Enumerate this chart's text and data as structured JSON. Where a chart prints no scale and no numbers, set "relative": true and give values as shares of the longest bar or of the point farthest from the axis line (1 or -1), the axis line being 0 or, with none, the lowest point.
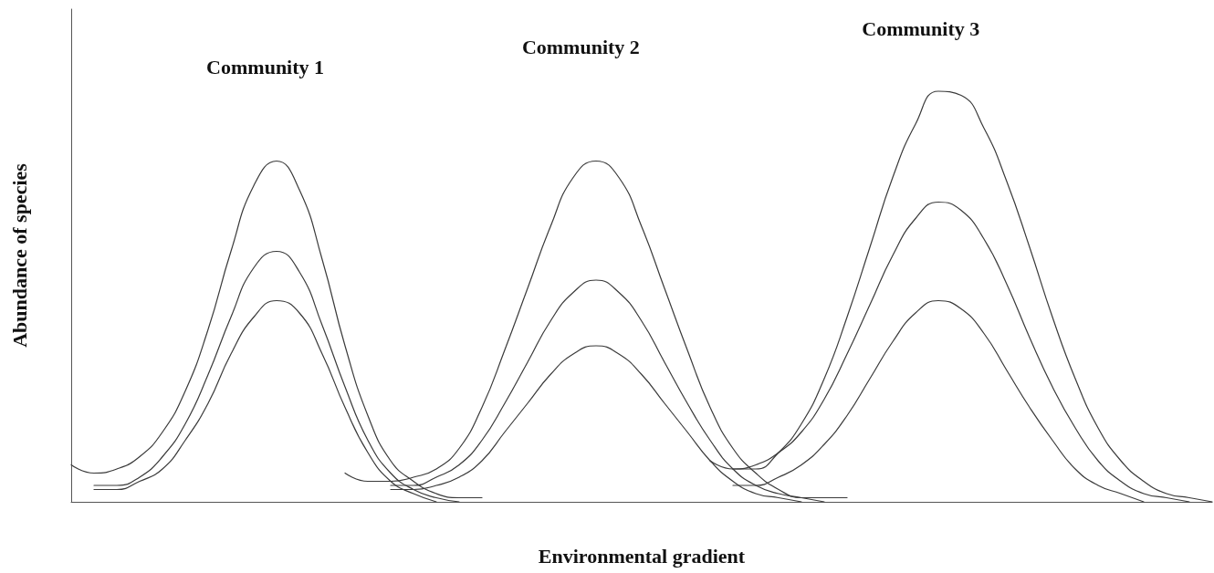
{
  "chart_data": {
    "type": "line",
    "relative": true,
    "xlabel": "Environmental gradient",
    "ylabel": "Abundance of species",
    "annotations": [
      "Community 1",
      "Community 2",
      "Community 3"
    ],
    "marker": "none",
    "line_style": "solid",
    "grid": false,
    "tick_labels": false,
    "categories": [
      null,
      null,
      null,
      null,
      null,
      null,
      null,
      null,
      null,
      null,
      null,
      null,
      null,
      null,
      null,
      null,
      null,
      null,
      null,
      null,
      null,
      null,
      null,
      null,
      null,
      null,
      null,
      null,
      null,
      null,
      null,
      null,
      null,
      null,
      null,
      null,
      null,
      null,
      null,
      null,
      null,
      null,
      null,
      null,
      null,
      null,
      null,
      null,
      null,
      null,
      null
    ],
    "series": [
      {
        "color": "#3a3a3a",
        "values": [
          0.09,
          0.07,
          0.08,
          0.11,
          0.17,
          0.27,
          0.42,
          0.61,
          0.77,
          0.83,
          0.76,
          0.59,
          0.38,
          0.21,
          0.1,
          0.05,
          0.02,
          0.01,
          0.01,
          null,
          null,
          null,
          null,
          null,
          null,
          null,
          null,
          null,
          null,
          null,
          null,
          null,
          null,
          null,
          null,
          null,
          null,
          null,
          null,
          null,
          null,
          null,
          null,
          null,
          null,
          null,
          null,
          null,
          null,
          null,
          null
        ]
      },
      {
        "color": "#3a3a3a",
        "values": [
          null,
          0.04,
          0.04,
          0.06,
          0.11,
          0.19,
          0.31,
          0.45,
          0.57,
          0.61,
          0.56,
          0.43,
          0.28,
          0.15,
          0.07,
          0.03,
          0.01,
          0.0,
          null,
          null,
          null,
          null,
          null,
          null,
          null,
          null,
          null,
          null,
          null,
          null,
          null,
          null,
          null,
          null,
          null,
          null,
          null,
          null,
          null,
          null,
          null,
          null,
          null,
          null,
          null,
          null,
          null,
          null,
          null,
          null,
          null
        ]
      },
      {
        "color": "#3a3a3a",
        "values": [
          null,
          0.03,
          0.03,
          0.05,
          0.08,
          0.15,
          0.24,
          0.36,
          0.45,
          0.49,
          0.46,
          0.36,
          0.23,
          0.12,
          0.05,
          0.02,
          0.0,
          null,
          null,
          null,
          null,
          null,
          null,
          null,
          null,
          null,
          null,
          null,
          null,
          null,
          null,
          null,
          null,
          null,
          null,
          null,
          null,
          null,
          null,
          null,
          null,
          null,
          null,
          null,
          null,
          null,
          null,
          null,
          null,
          null,
          null
        ]
      },
      {
        "color": "#3a3a3a",
        "values": [
          null,
          null,
          null,
          null,
          null,
          null,
          null,
          null,
          null,
          null,
          null,
          null,
          0.07,
          0.05,
          0.05,
          0.06,
          0.08,
          0.13,
          0.23,
          0.37,
          0.52,
          0.67,
          0.79,
          0.83,
          0.79,
          0.67,
          0.52,
          0.37,
          0.23,
          0.13,
          0.07,
          0.03,
          0.01,
          0.01,
          0.01,
          null,
          null,
          null,
          null,
          null,
          null,
          null,
          null,
          null,
          null,
          null,
          null,
          null,
          null,
          null,
          null
        ]
      },
      {
        "color": "#3a3a3a",
        "values": [
          null,
          null,
          null,
          null,
          null,
          null,
          null,
          null,
          null,
          null,
          null,
          null,
          null,
          null,
          0.04,
          0.04,
          0.06,
          0.09,
          0.15,
          0.24,
          0.34,
          0.44,
          0.51,
          0.54,
          0.51,
          0.44,
          0.34,
          0.24,
          0.15,
          0.08,
          0.04,
          0.02,
          0.01,
          0.0,
          null,
          null,
          null,
          null,
          null,
          null,
          null,
          null,
          null,
          null,
          null,
          null,
          null,
          null,
          null,
          null,
          null
        ]
      },
      {
        "color": "#3a3a3a",
        "values": [
          null,
          null,
          null,
          null,
          null,
          null,
          null,
          null,
          null,
          null,
          null,
          null,
          null,
          null,
          0.03,
          0.03,
          0.04,
          0.06,
          0.1,
          0.17,
          0.24,
          0.31,
          0.36,
          0.38,
          0.36,
          0.31,
          0.24,
          0.17,
          0.1,
          0.05,
          0.02,
          0.01,
          0.0,
          null,
          null,
          null,
          null,
          null,
          null,
          null,
          null,
          null,
          null,
          null,
          null,
          null,
          null,
          null,
          null,
          null,
          null
        ]
      },
      {
        "color": "#3a3a3a",
        "values": [
          null,
          null,
          null,
          null,
          null,
          null,
          null,
          null,
          null,
          null,
          null,
          null,
          null,
          null,
          null,
          null,
          null,
          null,
          null,
          null,
          null,
          null,
          null,
          null,
          null,
          null,
          null,
          null,
          null,
          0.08,
          0.08,
          0.12,
          0.19,
          0.3,
          0.45,
          0.62,
          0.79,
          0.92,
          1.0,
          0.99,
          0.91,
          0.78,
          0.62,
          0.45,
          0.3,
          0.18,
          0.1,
          0.05,
          0.02,
          0.01,
          0.0
        ]
      },
      {
        "color": "#3a3a3a",
        "values": [
          null,
          null,
          null,
          null,
          null,
          null,
          null,
          null,
          null,
          null,
          null,
          null,
          null,
          null,
          null,
          null,
          null,
          null,
          null,
          null,
          null,
          null,
          null,
          null,
          null,
          null,
          null,
          null,
          0.1,
          0.08,
          0.09,
          0.12,
          0.17,
          0.25,
          0.36,
          0.48,
          0.6,
          0.69,
          0.73,
          0.71,
          0.64,
          0.53,
          0.4,
          0.28,
          0.18,
          0.1,
          0.05,
          0.02,
          0.01,
          0.0,
          null
        ]
      },
      {
        "color": "#3a3a3a",
        "values": [
          null,
          null,
          null,
          null,
          null,
          null,
          null,
          null,
          null,
          null,
          null,
          null,
          null,
          null,
          null,
          null,
          null,
          null,
          null,
          null,
          null,
          null,
          null,
          null,
          null,
          null,
          null,
          null,
          null,
          0.04,
          0.04,
          0.06,
          0.09,
          0.14,
          0.21,
          0.3,
          0.39,
          0.46,
          0.49,
          0.47,
          0.41,
          0.32,
          0.23,
          0.15,
          0.08,
          0.04,
          0.02,
          0.0,
          null,
          null,
          null
        ]
      }
    ]
  }
}
